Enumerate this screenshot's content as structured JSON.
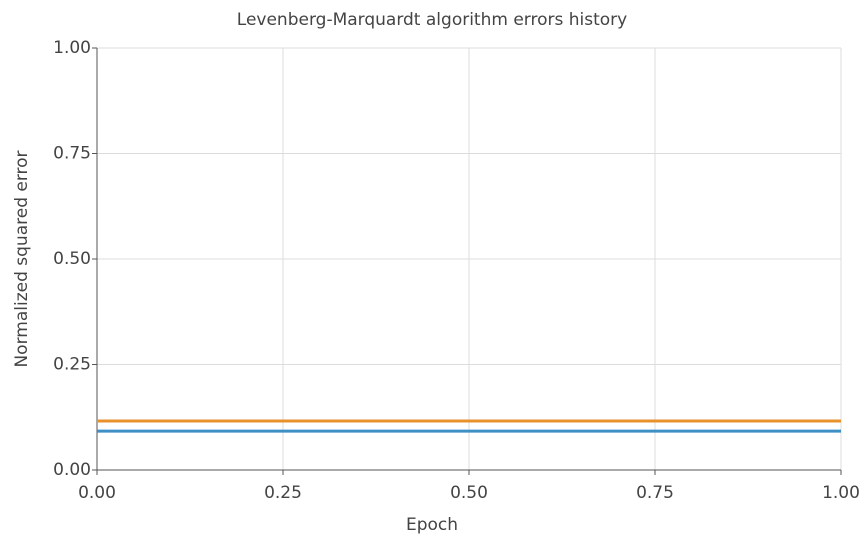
{
  "chart_data": {
    "type": "line",
    "title": "Levenberg-Marquardt algorithm errors history",
    "x_label": "Epoch",
    "y_label": "Normalized squared error",
    "x": [
      0,
      1
    ],
    "series": [
      {
        "color": "#3d8fc6",
        "values": [
          0.092,
          0.092
        ]
      },
      {
        "color": "#e8922c",
        "values": [
          0.116,
          0.116
        ]
      }
    ],
    "xlim": [
      0,
      1
    ],
    "ylim": [
      0,
      1
    ],
    "xticks": [
      {
        "value": 0,
        "label": "0.00"
      },
      0.25,
      {
        "value": 0.5,
        "label": "0.50"
      },
      0.75,
      {
        "value": 1,
        "label": "1.00"
      }
    ],
    "yticks": [
      {
        "value": 0,
        "label": "0.00"
      },
      0.25,
      {
        "value": 0.5,
        "label": "0.50"
      },
      0.75,
      {
        "value": 1,
        "label": "1.00"
      }
    ],
    "grid": true
  }
}
